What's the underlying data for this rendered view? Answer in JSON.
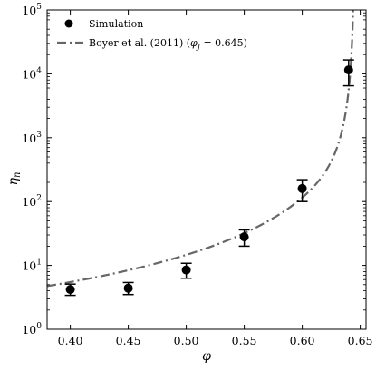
{
  "chart_data": {
    "type": "scatter",
    "title": "",
    "xlabel": "φ",
    "ylabel_main": "η",
    "ylabel_sub": "n",
    "xlim": [
      0.38,
      0.655
    ],
    "ylim": [
      1,
      100000
    ],
    "yscale": "log",
    "grid": false,
    "legend_position": "top-left",
    "x_ticks": [
      0.4,
      0.45,
      0.5,
      0.55,
      0.6,
      0.65
    ],
    "x_tick_labels": [
      "0.40",
      "0.45",
      "0.50",
      "0.55",
      "0.60",
      "0.65"
    ],
    "y_ticks": [
      1,
      10,
      100,
      1000,
      10000,
      100000
    ],
    "y_tick_labels": [
      {
        "base": "10",
        "exp": "0"
      },
      {
        "base": "10",
        "exp": "1"
      },
      {
        "base": "10",
        "exp": "2"
      },
      {
        "base": "10",
        "exp": "3"
      },
      {
        "base": "10",
        "exp": "4"
      },
      {
        "base": "10",
        "exp": "5"
      }
    ],
    "series": [
      {
        "name": "Simulation",
        "kind": "points-with-errorbars",
        "color": "#000000",
        "x": [
          0.4,
          0.45,
          0.5,
          0.55,
          0.6,
          0.64
        ],
        "y": [
          4.2,
          4.4,
          8.5,
          28,
          160,
          11500
        ],
        "y_low": [
          3.4,
          3.5,
          6.3,
          20,
          100,
          6500
        ],
        "y_high": [
          5.1,
          5.4,
          10.8,
          36,
          220,
          16500
        ]
      },
      {
        "name_text": "Boyer et al. (2011) (",
        "name_math_var": "φ",
        "name_math_sub": "J",
        "name_math_rest": " = 0.645)",
        "kind": "model-curve",
        "style": "dash-dot",
        "color": "#666666",
        "phi_J": 0.645
      }
    ]
  }
}
